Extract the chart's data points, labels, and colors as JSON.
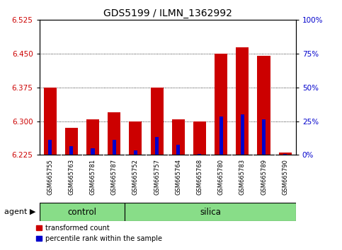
{
  "title": "GDS5199 / ILMN_1362992",
  "samples": [
    "GSM665755",
    "GSM665763",
    "GSM665781",
    "GSM665787",
    "GSM665752",
    "GSM665757",
    "GSM665764",
    "GSM665768",
    "GSM665780",
    "GSM665783",
    "GSM665789",
    "GSM665790"
  ],
  "groups": [
    "control",
    "control",
    "control",
    "control",
    "silica",
    "silica",
    "silica",
    "silica",
    "silica",
    "silica",
    "silica",
    "silica"
  ],
  "baseline": 6.225,
  "red_tops": [
    6.375,
    6.285,
    6.305,
    6.32,
    6.3,
    6.375,
    6.305,
    6.3,
    6.45,
    6.465,
    6.445,
    6.23
  ],
  "blue_tops": [
    6.258,
    6.245,
    6.24,
    6.258,
    6.235,
    6.265,
    6.248,
    6.228,
    6.31,
    6.315,
    6.305,
    6.228
  ],
  "ylim_left": [
    6.225,
    6.525
  ],
  "ylim_right": [
    0,
    100
  ],
  "yticks_left": [
    6.225,
    6.3,
    6.375,
    6.45,
    6.525
  ],
  "yticks_right": [
    0,
    25,
    50,
    75,
    100
  ],
  "ytick_labels_right": [
    "0%",
    "25%",
    "50%",
    "75%",
    "100%"
  ],
  "left_color": "#cc0000",
  "right_color": "#0000cc",
  "bar_width": 0.6,
  "green_color": "#88dd88",
  "agent_label": "agent",
  "control_label": "control",
  "silica_label": "silica",
  "legend_red": "transformed count",
  "legend_blue": "percentile rank within the sample",
  "gray_color": "#c8c8c8",
  "grid_color": "#000000",
  "control_count": 4,
  "silica_count": 8
}
